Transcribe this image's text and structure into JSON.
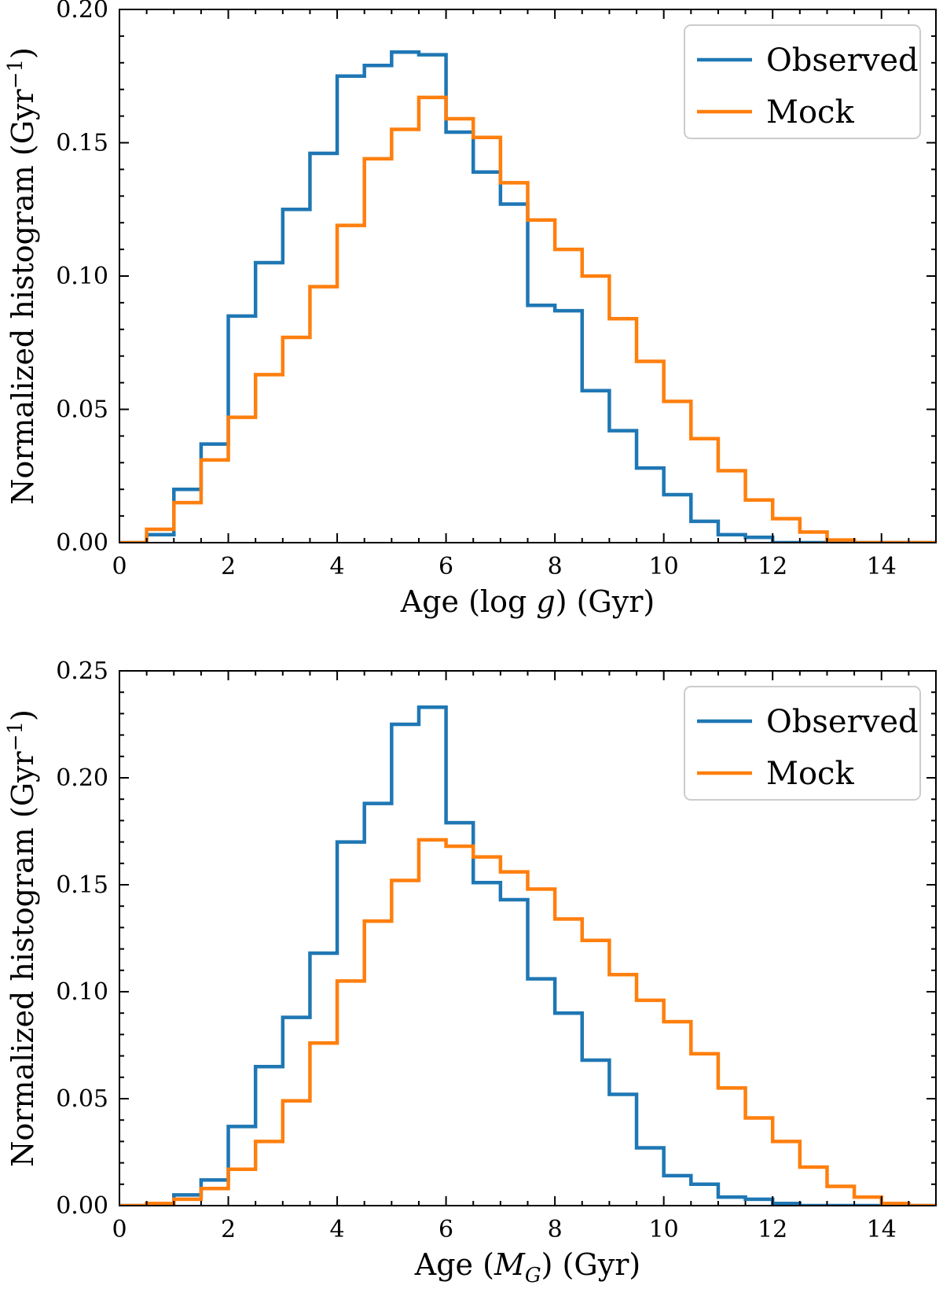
{
  "chart_data": [
    {
      "type": "histogram",
      "xlabel": "Age (log g) (Gyr)",
      "xlabel_parts": {
        "prefix": "Age  (log ",
        "italic": "g",
        "suffix": ")  (Gyr)"
      },
      "ylabel": "Normalized histogram (Gyr⁻¹)",
      "ylabel_parts": {
        "main": "Normalized histogram  (Gyr",
        "sup": "−1",
        "close": ")"
      },
      "xlim": [
        0,
        15
      ],
      "ylim": [
        0,
        0.2
      ],
      "xticks": [
        0,
        2,
        4,
        6,
        8,
        10,
        12,
        14
      ],
      "xtick_labels": [
        "0",
        "2",
        "4",
        "6",
        "8",
        "10",
        "12",
        "14"
      ],
      "yticks": [
        0,
        0.05,
        0.1,
        0.15,
        0.2
      ],
      "ytick_labels": [
        "0.00",
        "0.05",
        "0.10",
        "0.15",
        "0.20"
      ],
      "bin_edges": [
        0,
        0.5,
        1,
        1.5,
        2,
        2.5,
        3,
        3.5,
        4,
        4.5,
        5,
        5.5,
        6,
        6.5,
        7,
        7.5,
        8,
        8.5,
        9,
        9.5,
        10,
        10.5,
        11,
        11.5,
        12,
        12.5,
        13,
        13.5,
        14,
        14.5,
        15
      ],
      "legend_position": "top-right",
      "series": [
        {
          "name": "Observed",
          "color": "#1f77b4",
          "values": [
            0,
            0.003,
            0.02,
            0.037,
            0.085,
            0.105,
            0.125,
            0.146,
            0.175,
            0.179,
            0.184,
            0.183,
            0.154,
            0.139,
            0.127,
            0.089,
            0.087,
            0.057,
            0.042,
            0.028,
            0.018,
            0.008,
            0.003,
            0.002,
            0,
            0,
            0,
            0,
            0,
            0
          ]
        },
        {
          "name": "Mock",
          "color": "#ff7f0e",
          "values": [
            0,
            0.005,
            0.015,
            0.031,
            0.047,
            0.063,
            0.077,
            0.096,
            0.119,
            0.144,
            0.155,
            0.167,
            0.159,
            0.152,
            0.135,
            0.121,
            0.11,
            0.1,
            0.084,
            0.068,
            0.053,
            0.039,
            0.027,
            0.016,
            0.009,
            0.004,
            0.001,
            0,
            0,
            0
          ]
        }
      ]
    },
    {
      "type": "histogram",
      "xlabel": "Age (M_G) (Gyr)",
      "xlabel_parts": {
        "prefix": "Age  (",
        "italic": "M",
        "sub": "G",
        "suffix": ")  (Gyr)"
      },
      "ylabel": "Normalized histogram (Gyr⁻¹)",
      "ylabel_parts": {
        "main": "Normalized histogram  (Gyr",
        "sup": "−1",
        "close": ")"
      },
      "xlim": [
        0,
        15
      ],
      "ylim": [
        0,
        0.25
      ],
      "xticks": [
        0,
        2,
        4,
        6,
        8,
        10,
        12,
        14
      ],
      "xtick_labels": [
        "0",
        "2",
        "4",
        "6",
        "8",
        "10",
        "12",
        "14"
      ],
      "yticks": [
        0,
        0.05,
        0.1,
        0.15,
        0.2,
        0.25
      ],
      "ytick_labels": [
        "0.00",
        "0.05",
        "0.10",
        "0.15",
        "0.20",
        "0.25"
      ],
      "bin_edges": [
        0,
        0.5,
        1,
        1.5,
        2,
        2.5,
        3,
        3.5,
        4,
        4.5,
        5,
        5.5,
        6,
        6.5,
        7,
        7.5,
        8,
        8.5,
        9,
        9.5,
        10,
        10.5,
        11,
        11.5,
        12,
        12.5,
        13,
        13.5,
        14,
        14.5,
        15
      ],
      "legend_position": "top-right",
      "series": [
        {
          "name": "Observed",
          "color": "#1f77b4",
          "values": [
            0,
            0.001,
            0.005,
            0.012,
            0.037,
            0.065,
            0.088,
            0.118,
            0.17,
            0.188,
            0.225,
            0.233,
            0.179,
            0.151,
            0.143,
            0.106,
            0.09,
            0.068,
            0.052,
            0.027,
            0.014,
            0.01,
            0.004,
            0.003,
            0.001,
            0,
            0,
            0,
            0,
            0
          ]
        },
        {
          "name": "Mock",
          "color": "#ff7f0e",
          "values": [
            0,
            0.001,
            0.003,
            0.008,
            0.017,
            0.03,
            0.049,
            0.076,
            0.105,
            0.133,
            0.152,
            0.171,
            0.168,
            0.163,
            0.156,
            0.148,
            0.134,
            0.124,
            0.108,
            0.096,
            0.086,
            0.071,
            0.055,
            0.041,
            0.03,
            0.018,
            0.009,
            0.004,
            0.001,
            0
          ]
        }
      ]
    }
  ]
}
